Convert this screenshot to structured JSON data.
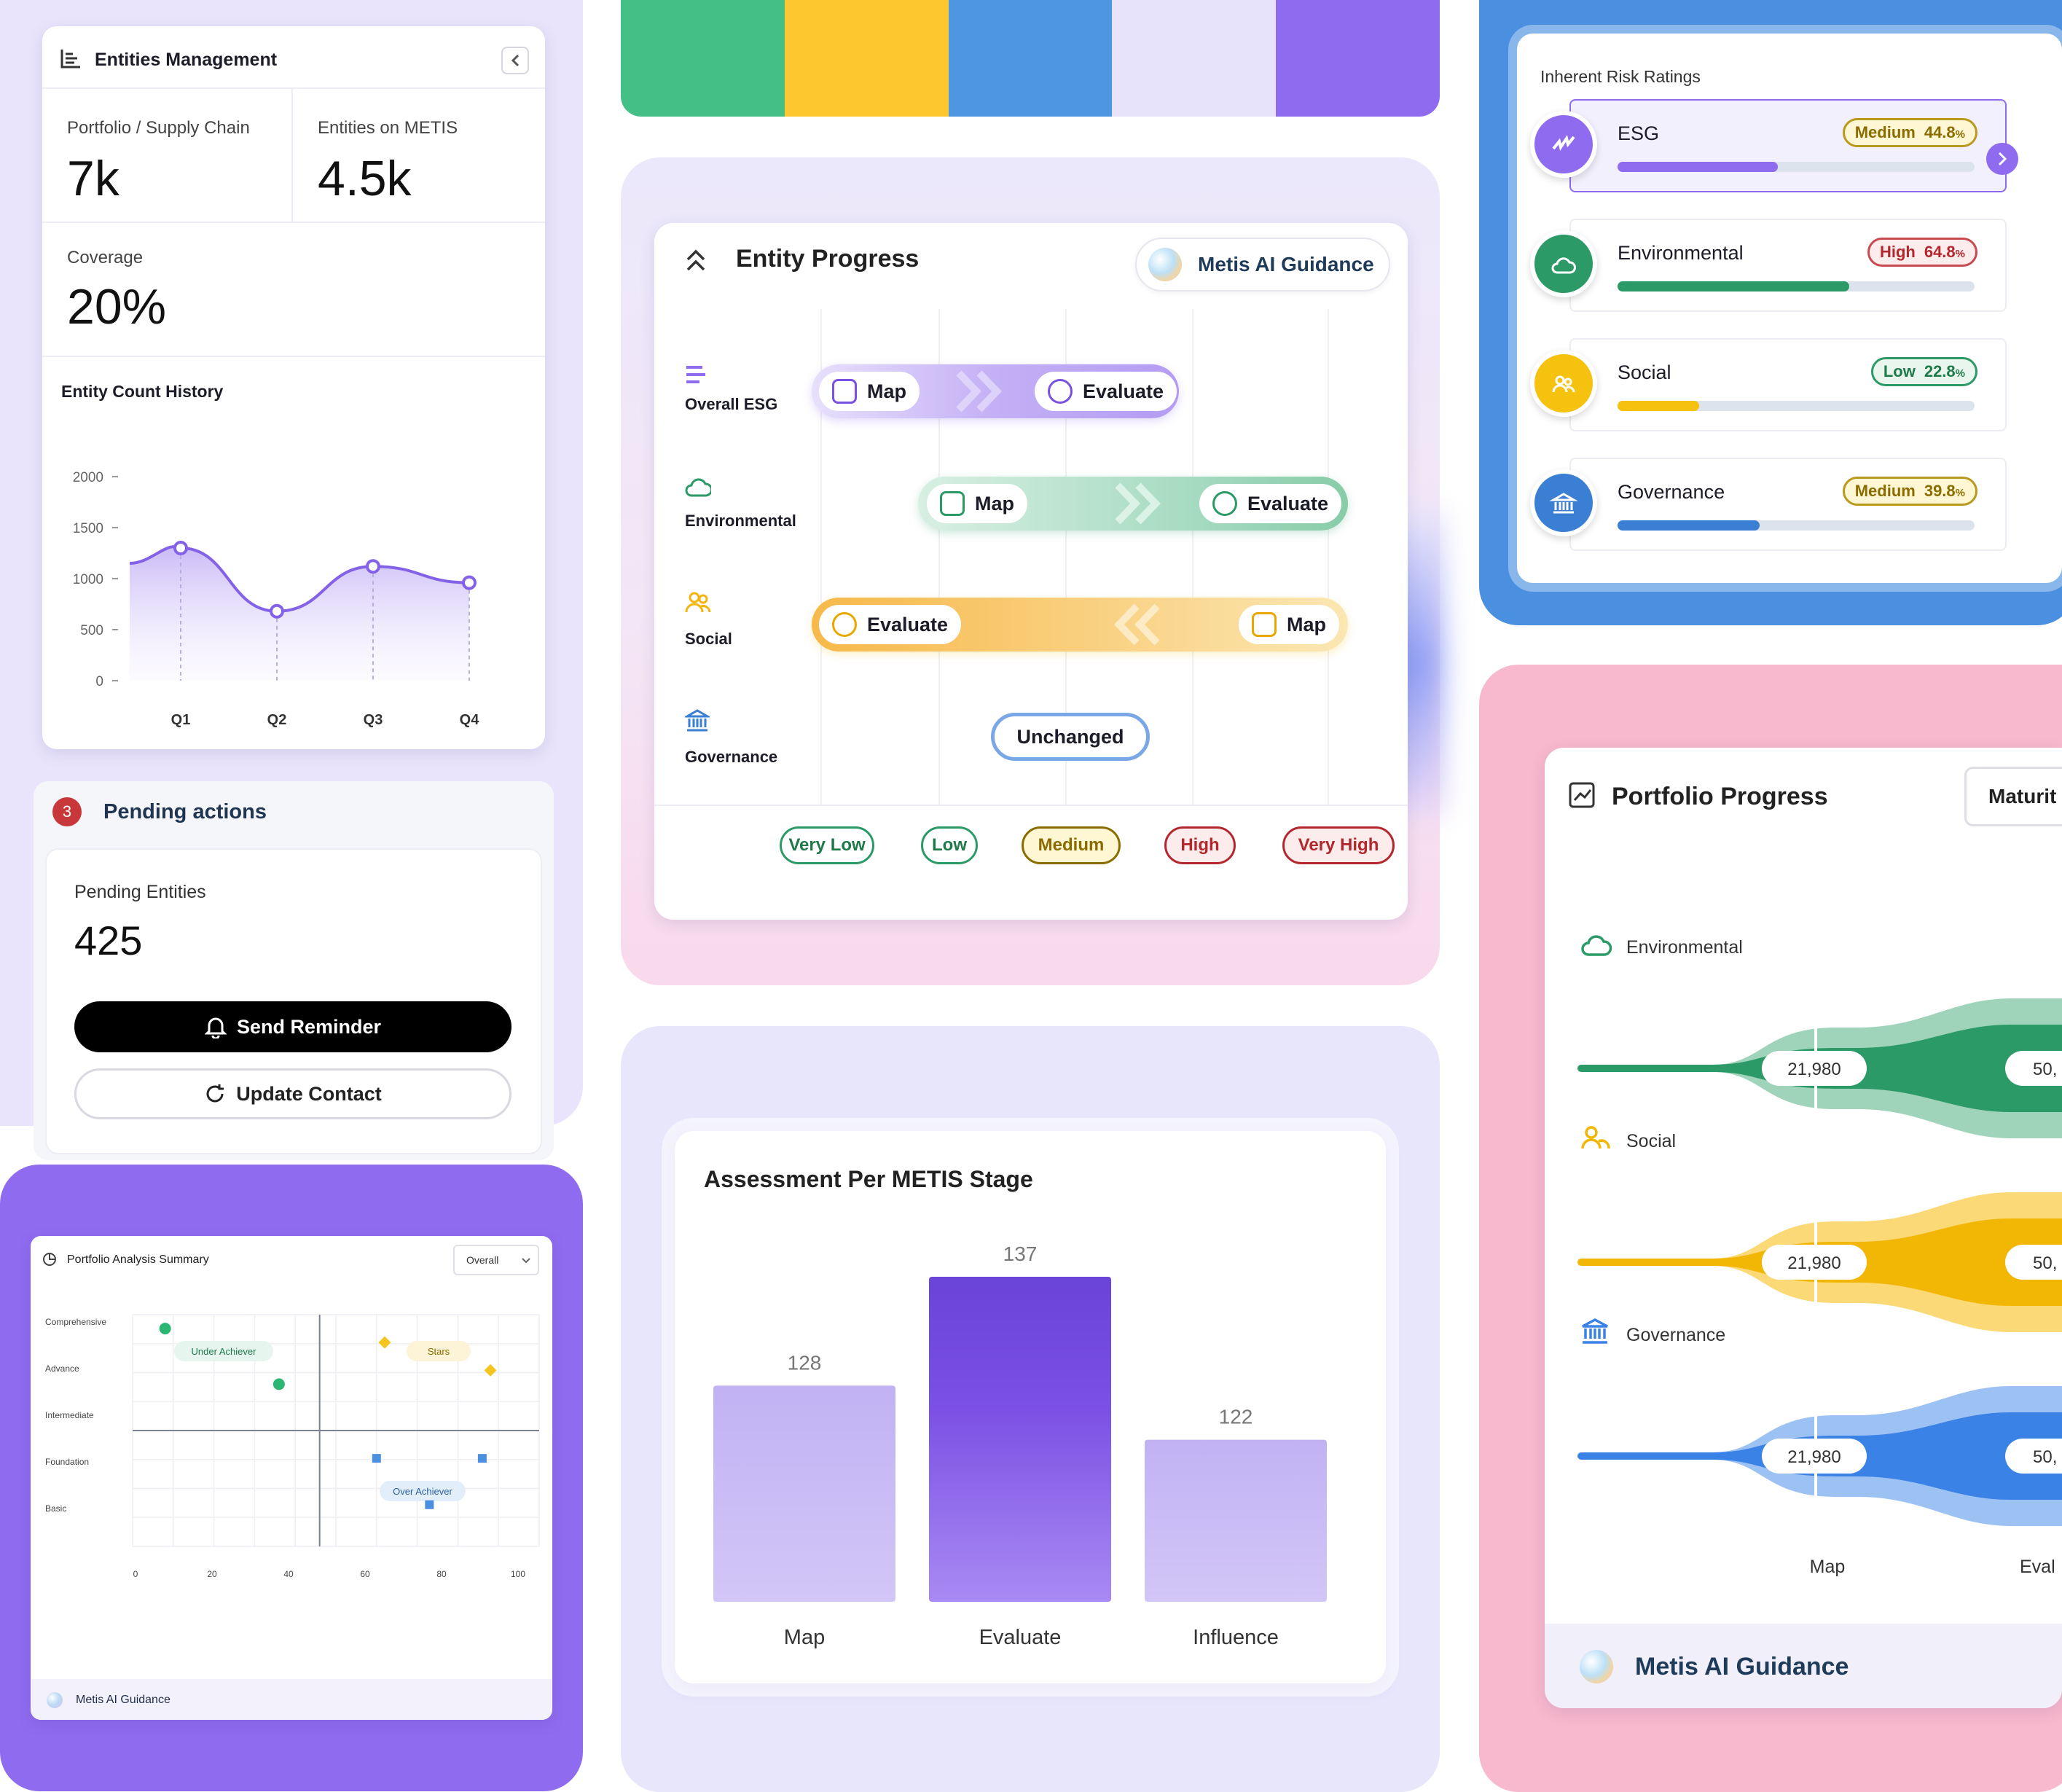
{
  "palette": [
    "#44c086",
    "#fdc82f",
    "#4e96e0",
    "#e7e3fb",
    "#8f6bef"
  ],
  "entities_management": {
    "title": "Entities Management",
    "stat1_label": "Portfolio / Supply Chain",
    "stat1_value": "7k",
    "stat2_label": "Entities on METIS",
    "stat2_value": "4.5k",
    "coverage_label": "Coverage",
    "coverage_value": "20%",
    "history_title": "Entity Count History"
  },
  "pending": {
    "count": "3",
    "title": "Pending actions",
    "entities_label": "Pending Entities",
    "entities_value": "425",
    "send_label": "Send Reminder",
    "update_label": "Update Contact"
  },
  "analysis": {
    "title": "Portfolio Analysis Summary",
    "select_value": "Overall",
    "footer": "Metis AI Guidance"
  },
  "entity_progress": {
    "title": "Entity Progress",
    "guidance": "Metis AI Guidance",
    "rows": [
      {
        "label": "Overall ESG",
        "chips": [
          "Map",
          "Evaluate"
        ]
      },
      {
        "label": "Environmental",
        "chips": [
          "Map",
          "Evaluate"
        ]
      },
      {
        "label": "Social",
        "chips": [
          "Evaluate",
          "Map"
        ]
      },
      {
        "label": "Governance",
        "chips": [
          "Unchanged"
        ]
      }
    ],
    "levels": [
      "Very Low",
      "Low",
      "Medium",
      "High",
      "Very High"
    ]
  },
  "assessment": {
    "title": "Assessment Per METIS Stage"
  },
  "risk": {
    "title": "Inherent Risk Ratings",
    "items": [
      {
        "name": "ESG",
        "level": "Medium",
        "pct": "44.8",
        "unit": "%",
        "fill": 0.448,
        "color": "#8f6bef",
        "icon": "esg-icon"
      },
      {
        "name": "Environmental",
        "level": "High",
        "pct": "64.8",
        "unit": "%",
        "fill": 0.648,
        "color": "#2b9a67",
        "icon": "cloud-icon"
      },
      {
        "name": "Social",
        "level": "Low",
        "pct": "22.8",
        "unit": "%",
        "fill": 0.228,
        "color": "#f5c20f",
        "icon": "people-icon"
      },
      {
        "name": "Governance",
        "level": "Medium",
        "pct": "39.8",
        "unit": "%",
        "fill": 0.398,
        "color": "#3a7fd4",
        "icon": "bank-icon"
      }
    ]
  },
  "portfolio_progress": {
    "title": "Portfolio Progress",
    "select_value": "Maturit",
    "rows": [
      {
        "label": "Environmental",
        "value1": "21,980",
        "value2": "50,"
      },
      {
        "label": "Social",
        "value1": "21,980",
        "value2": "50,"
      },
      {
        "label": "Governance",
        "value1": "21,980",
        "value2": "50,"
      }
    ],
    "x_labels": [
      "Map",
      "Eval"
    ],
    "guidance": "Metis AI Guidance"
  },
  "chart_data": [
    {
      "type": "line",
      "title": "Entity Count History",
      "categories": [
        "Q1",
        "Q2",
        "Q3",
        "Q4"
      ],
      "values": [
        1300,
        680,
        1120,
        960
      ],
      "yticks": [
        "2000",
        "1500",
        "1000",
        "500",
        "0"
      ],
      "ylim": [
        0,
        2000
      ]
    },
    {
      "type": "bar",
      "title": "Assessment Per METIS Stage",
      "categories": [
        "Map",
        "Evaluate",
        "Influence"
      ],
      "values": [
        128,
        137,
        122
      ]
    },
    {
      "type": "scatter",
      "title": "Portfolio Analysis Summary",
      "xticks": [
        "0",
        "20",
        "40",
        "60",
        "80",
        "100"
      ],
      "yticks": [
        "Comprehensive",
        "Advance",
        "Intermediate",
        "Foundation",
        "Basic"
      ],
      "quadrants": [
        "Under Achiever",
        "Stars",
        "Over Achiever"
      ],
      "series": [
        {
          "name": "green",
          "x": [
            8,
            36
          ],
          "y": [
            4.7,
            3.5
          ]
        },
        {
          "name": "yellow",
          "x": [
            62,
            88
          ],
          "y": [
            4.4,
            3.8
          ]
        },
        {
          "name": "blue",
          "x": [
            60,
            86,
            73
          ],
          "y": [
            1.9,
            1.9,
            0.9
          ]
        }
      ]
    }
  ]
}
